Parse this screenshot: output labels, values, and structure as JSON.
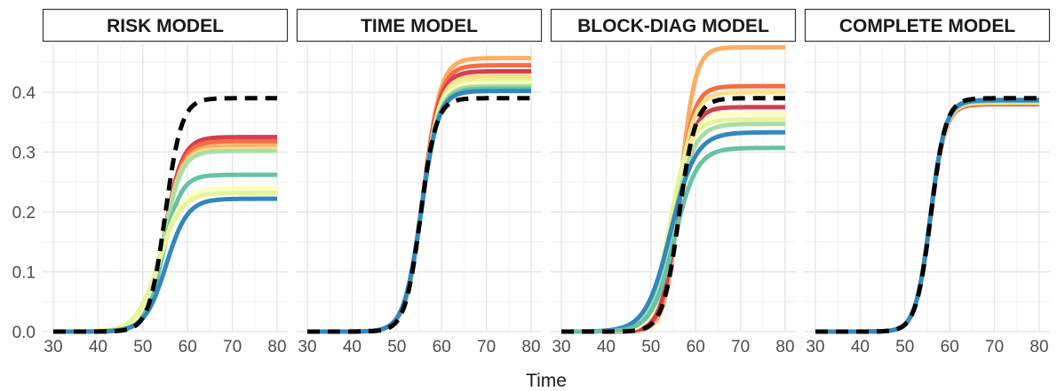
{
  "chart_data": {
    "type": "line",
    "xlabel": "Time",
    "ylabel": "",
    "xlim": [
      30,
      80
    ],
    "ylim": [
      0,
      0.48
    ],
    "x_ticks": [
      30,
      40,
      50,
      60,
      70,
      80
    ],
    "y_ticks": [
      0.0,
      0.1,
      0.2,
      0.3,
      0.4
    ],
    "y_tick_labels": [
      "0.0",
      "0.1",
      "0.2",
      "0.3",
      "0.4"
    ],
    "grid": true,
    "reference_style": "black-dashed",
    "colors": {
      "red": "#d53e4f",
      "orange_red": "#f46d43",
      "orange": "#fdae61",
      "yellow": "#fee08b",
      "light_yellow": "#ffffbf",
      "lime": "#e6f598",
      "light_green": "#abdda4",
      "teal": "#66c2a5",
      "blue": "#3288bd",
      "reference": "#000000"
    },
    "panels": [
      {
        "title": "RISK MODEL",
        "reference": {
          "plateau": 0.39,
          "midpoint": 55.0,
          "steepness": 0.55
        },
        "series": [
          {
            "color": "#d53e4f",
            "plateau": 0.325,
            "midpoint": 54.8,
            "steepness": 0.5
          },
          {
            "color": "#f46d43",
            "plateau": 0.318,
            "midpoint": 54.8,
            "steepness": 0.5
          },
          {
            "color": "#fdae61",
            "plateau": 0.31,
            "midpoint": 54.7,
            "steepness": 0.5
          },
          {
            "color": "#fee08b",
            "plateau": 0.305,
            "midpoint": 54.6,
            "steepness": 0.5
          },
          {
            "color": "#abdda4",
            "plateau": 0.302,
            "midpoint": 54.6,
            "steepness": 0.5
          },
          {
            "color": "#66c2a5",
            "plateau": 0.262,
            "midpoint": 54.5,
            "steepness": 0.5
          },
          {
            "color": "#ffffbf",
            "plateau": 0.24,
            "midpoint": 53.8,
            "steepness": 0.42
          },
          {
            "color": "#e6f598",
            "plateau": 0.232,
            "midpoint": 53.5,
            "steepness": 0.4
          },
          {
            "color": "#3288bd",
            "plateau": 0.222,
            "midpoint": 55.2,
            "steepness": 0.42
          }
        ]
      },
      {
        "title": "TIME MODEL",
        "reference": {
          "plateau": 0.39,
          "midpoint": 55.3,
          "steepness": 0.58
        },
        "series": [
          {
            "color": "#fdae61",
            "plateau": 0.457,
            "midpoint": 55.9,
            "steepness": 0.52
          },
          {
            "color": "#f46d43",
            "plateau": 0.445,
            "midpoint": 55.8,
            "steepness": 0.52
          },
          {
            "color": "#d53e4f",
            "plateau": 0.435,
            "midpoint": 55.7,
            "steepness": 0.52
          },
          {
            "color": "#fee08b",
            "plateau": 0.427,
            "midpoint": 55.7,
            "steepness": 0.52
          },
          {
            "color": "#e6f598",
            "plateau": 0.42,
            "midpoint": 55.6,
            "steepness": 0.52
          },
          {
            "color": "#ffffbf",
            "plateau": 0.415,
            "midpoint": 55.6,
            "steepness": 0.52
          },
          {
            "color": "#abdda4",
            "plateau": 0.41,
            "midpoint": 55.5,
            "steepness": 0.52
          },
          {
            "color": "#66c2a5",
            "plateau": 0.406,
            "midpoint": 55.5,
            "steepness": 0.52
          },
          {
            "color": "#3288bd",
            "plateau": 0.402,
            "midpoint": 55.4,
            "steepness": 0.52
          }
        ]
      },
      {
        "title": "BLOCK-DIAG MODEL",
        "reference": {
          "plateau": 0.39,
          "midpoint": 56.3,
          "steepness": 0.55
        },
        "series": [
          {
            "color": "#fdae61",
            "plateau": 0.475,
            "midpoint": 56.5,
            "steepness": 0.6
          },
          {
            "color": "#f46d43",
            "plateau": 0.41,
            "midpoint": 55.8,
            "steepness": 0.55
          },
          {
            "color": "#fee08b",
            "plateau": 0.4,
            "midpoint": 55.5,
            "steepness": 0.5
          },
          {
            "color": "#d53e4f",
            "plateau": 0.375,
            "midpoint": 55.8,
            "steepness": 0.55
          },
          {
            "color": "#ffffbf",
            "plateau": 0.365,
            "midpoint": 55.0,
            "steepness": 0.48
          },
          {
            "color": "#e6f598",
            "plateau": 0.355,
            "midpoint": 54.2,
            "steepness": 0.45
          },
          {
            "color": "#abdda4",
            "plateau": 0.347,
            "midpoint": 54.8,
            "steepness": 0.42
          },
          {
            "color": "#3288bd",
            "plateau": 0.333,
            "midpoint": 54.4,
            "steepness": 0.36
          },
          {
            "color": "#66c2a5",
            "plateau": 0.307,
            "midpoint": 55.2,
            "steepness": 0.4
          }
        ]
      },
      {
        "title": "COMPLETE MODEL",
        "reference": {
          "plateau": 0.39,
          "midpoint": 55.8,
          "steepness": 0.6
        },
        "series": [
          {
            "color": "#d53e4f",
            "plateau": 0.38,
            "midpoint": 55.7,
            "steepness": 0.6
          },
          {
            "color": "#f46d43",
            "plateau": 0.381,
            "midpoint": 55.7,
            "steepness": 0.6
          },
          {
            "color": "#fdae61",
            "plateau": 0.382,
            "midpoint": 55.7,
            "steepness": 0.6
          },
          {
            "color": "#fee08b",
            "plateau": 0.383,
            "midpoint": 55.7,
            "steepness": 0.6
          },
          {
            "color": "#e6f598",
            "plateau": 0.384,
            "midpoint": 55.7,
            "steepness": 0.6
          },
          {
            "color": "#abdda4",
            "plateau": 0.385,
            "midpoint": 55.7,
            "steepness": 0.6
          },
          {
            "color": "#66c2a5",
            "plateau": 0.386,
            "midpoint": 55.7,
            "steepness": 0.6
          },
          {
            "color": "#3288bd",
            "plateau": 0.387,
            "midpoint": 55.7,
            "steepness": 0.6
          }
        ]
      }
    ]
  }
}
